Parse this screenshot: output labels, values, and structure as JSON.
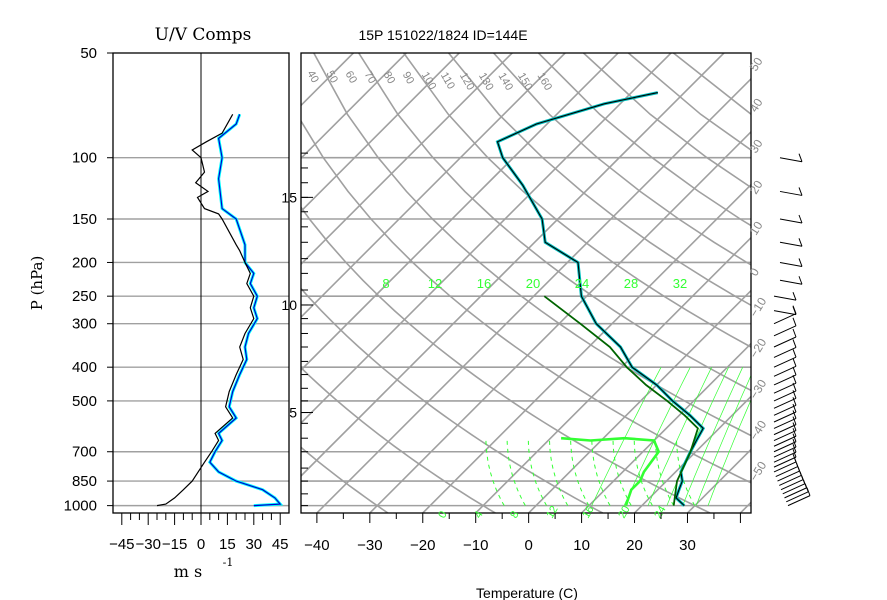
{
  "titles": {
    "left": "U/V Comps",
    "main": "15P 151022/1824 ID=144E",
    "ylabel": "P (hPa)",
    "xlabel_left": "m s",
    "xlabel_left_exp": "-1",
    "xlabel_main": "Temperature (C)"
  },
  "colors": {
    "grid": "#a0a0a0",
    "env_temp": "#000000",
    "env_temp2": "#00bfbf",
    "parcel": "#006400",
    "mixing": "#33ff33",
    "u_comp": "#000000",
    "v_comp": "#0000cc",
    "v_highlight": "#00ffff"
  },
  "chart_data": [
    {
      "type": "line",
      "name": "uv-components",
      "xlabel": "m s -1",
      "ylabel": "P (hPa)",
      "xlim": [
        -50,
        50
      ],
      "x_ticks": [
        -45,
        -30,
        -15,
        0,
        15,
        30,
        45
      ],
      "x_tick_labels": [
        "−45",
        "−30",
        "−15",
        "0",
        "15",
        "30",
        "45"
      ],
      "pressure_ticks": [
        50,
        100,
        150,
        200,
        250,
        300,
        400,
        500,
        700,
        850,
        1000
      ],
      "series": [
        {
          "key": "u",
          "points": [
            [
              18,
              75
            ],
            [
              12,
              85
            ],
            [
              3,
              90
            ],
            [
              -5,
              95
            ],
            [
              0,
              100
            ],
            [
              2,
              110
            ],
            [
              -3,
              118
            ],
            [
              4,
              125
            ],
            [
              -2,
              130
            ],
            [
              2,
              140
            ],
            [
              10,
              145
            ],
            [
              12,
              150
            ],
            [
              20,
              178
            ],
            [
              22,
              185
            ],
            [
              25,
              200
            ],
            [
              28,
              215
            ],
            [
              26,
              230
            ],
            [
              30,
              250
            ],
            [
              28,
              270
            ],
            [
              30,
              290
            ],
            [
              25,
              320
            ],
            [
              22,
              350
            ],
            [
              24,
              380
            ],
            [
              20,
              420
            ],
            [
              16,
              470
            ],
            [
              14,
              520
            ],
            [
              18,
              560
            ],
            [
              8,
              620
            ],
            [
              10,
              650
            ],
            [
              6,
              700
            ],
            [
              2,
              750
            ],
            [
              -5,
              850
            ],
            [
              -10,
              900
            ],
            [
              -15,
              950
            ],
            [
              -20,
              990
            ],
            [
              -25,
              1000
            ]
          ]
        },
        {
          "key": "v",
          "points": [
            [
              22,
              75
            ],
            [
              20,
              80
            ],
            [
              10,
              88
            ],
            [
              12,
              100
            ],
            [
              10,
              115
            ],
            [
              12,
              140
            ],
            [
              20,
              150
            ],
            [
              25,
              178
            ],
            [
              25,
              200
            ],
            [
              30,
              215
            ],
            [
              28,
              230
            ],
            [
              32,
              250
            ],
            [
              30,
              270
            ],
            [
              32,
              290
            ],
            [
              27,
              320
            ],
            [
              25,
              350
            ],
            [
              26,
              380
            ],
            [
              22,
              420
            ],
            [
              18,
              470
            ],
            [
              16,
              520
            ],
            [
              20,
              560
            ],
            [
              10,
              620
            ],
            [
              12,
              650
            ],
            [
              8,
              700
            ],
            [
              5,
              750
            ],
            [
              10,
              800
            ],
            [
              20,
              850
            ],
            [
              35,
              900
            ],
            [
              42,
              950
            ],
            [
              45,
              990
            ],
            [
              30,
              1000
            ]
          ]
        }
      ]
    },
    {
      "type": "line",
      "name": "skew-t",
      "title": "15P 151022/1824 ID=144E",
      "xlabel": "Temperature (C)",
      "ylabel": "P (hPa)",
      "xlim": [
        -43,
        42
      ],
      "x_ticks": [
        -40,
        -30,
        -20,
        -10,
        0,
        10,
        20,
        30
      ],
      "x_tick_labels": [
        "−40",
        "−30",
        "−20",
        "−10",
        "0",
        "10",
        "20",
        "30"
      ],
      "height_ticks": [
        {
          "value": 5,
          "label": "5",
          "pressure": 540
        },
        {
          "value": 10,
          "label": "10",
          "pressure": 265
        },
        {
          "value": 15,
          "label": "15",
          "pressure": 130
        }
      ],
      "isotherm_labels": [
        "40",
        "50",
        "60",
        "70",
        "80",
        "90",
        "100",
        "110",
        "120",
        "130",
        "140",
        "150",
        "160"
      ],
      "adiabat_labels": [
        "50",
        "40",
        "30",
        "20",
        "10",
        "0",
        "−10",
        "−20",
        "−30",
        "−40",
        "−50"
      ],
      "mixing_ratio_labels": [
        "8",
        "12",
        "16",
        "20",
        "24",
        "28",
        "32"
      ],
      "environment": [
        [
          28,
          1000
        ],
        [
          25,
          950
        ],
        [
          24,
          900
        ],
        [
          23,
          850
        ],
        [
          21,
          800
        ],
        [
          20,
          750
        ],
        [
          19,
          700
        ],
        [
          18,
          650
        ],
        [
          17,
          600
        ],
        [
          12,
          550
        ],
        [
          6,
          500
        ],
        [
          0,
          450
        ],
        [
          -8,
          400
        ],
        [
          -14,
          350
        ],
        [
          -23,
          300
        ],
        [
          -31,
          250
        ],
        [
          -38,
          200
        ],
        [
          -48,
          175
        ],
        [
          -53,
          150
        ],
        [
          -63,
          120
        ],
        [
          -72,
          100
        ],
        [
          -76,
          90
        ],
        [
          -72,
          80
        ],
        [
          -63,
          70
        ],
        [
          -55,
          65
        ]
      ],
      "parcel": [
        [
          26,
          1000
        ],
        [
          22,
          850
        ],
        [
          19,
          700
        ],
        [
          16,
          600
        ],
        [
          11,
          550
        ],
        [
          5,
          500
        ],
        [
          -2,
          450
        ],
        [
          -9,
          400
        ],
        [
          -16,
          350
        ],
        [
          -26,
          300
        ],
        [
          -38,
          250
        ]
      ],
      "dewpoint": [
        [
          17,
          1000
        ],
        [
          16,
          950
        ],
        [
          15,
          900
        ],
        [
          15,
          850
        ],
        [
          14,
          800
        ],
        [
          13,
          700
        ],
        [
          10,
          650
        ],
        [
          4,
          640
        ],
        [
          -2,
          650
        ],
        [
          -8,
          640
        ]
      ]
    }
  ]
}
